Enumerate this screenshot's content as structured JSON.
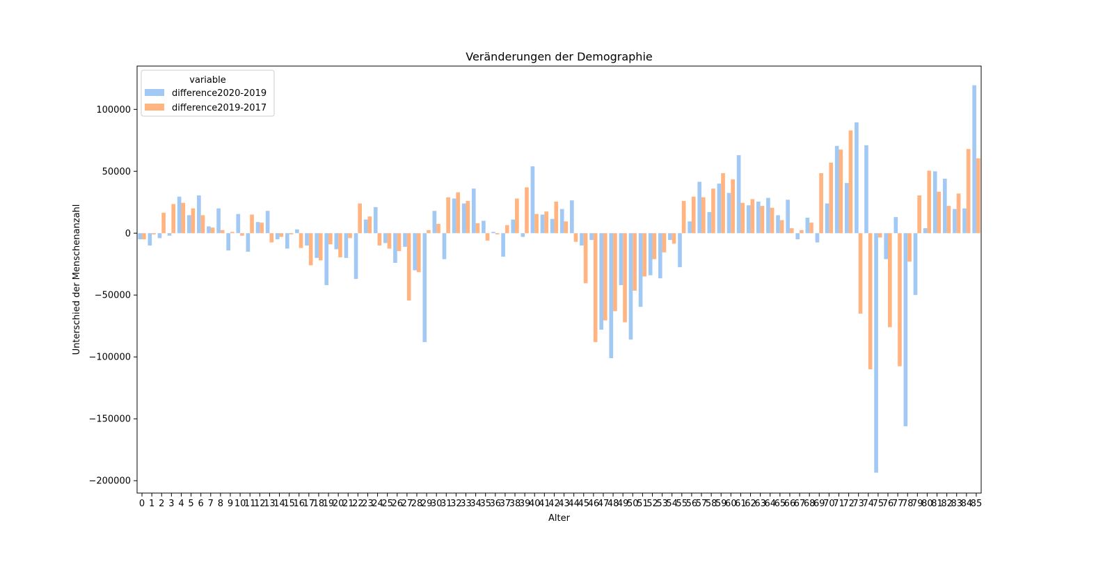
{
  "chart_data": {
    "type": "bar",
    "title": "Veränderungen der Demographie",
    "xlabel": "Alter",
    "ylabel": "Unterschied der Menschenanzahl",
    "ylim": [
      -210000,
      135000
    ],
    "yticks": [
      100000,
      50000,
      0,
      -50000,
      -100000,
      -150000,
      -200000
    ],
    "ytick_labels": [
      "100000",
      "50000",
      "0",
      "−50000",
      "−100000",
      "−150000",
      "−200000"
    ],
    "legend": {
      "title": "variable",
      "placement": "top-left"
    },
    "colors": [
      "#a1c9f4",
      "#ffb482"
    ],
    "categories": [
      "0",
      "1",
      "2",
      "3",
      "4",
      "5",
      "6",
      "7",
      "8",
      "9",
      "10",
      "11",
      "12",
      "13",
      "14",
      "15",
      "16",
      "17",
      "18",
      "19",
      "20",
      "21",
      "22",
      "23",
      "24",
      "25",
      "26",
      "27",
      "28",
      "29",
      "30",
      "31",
      "32",
      "33",
      "34",
      "35",
      "36",
      "37",
      "38",
      "39",
      "40",
      "41",
      "42",
      "43",
      "44",
      "45",
      "46",
      "47",
      "48",
      "49",
      "50",
      "51",
      "52",
      "53",
      "54",
      "55",
      "56",
      "57",
      "58",
      "59",
      "60",
      "61",
      "62",
      "63",
      "64",
      "65",
      "66",
      "67",
      "68",
      "69",
      "70",
      "71",
      "72",
      "73",
      "74",
      "75",
      "76",
      "77",
      "78",
      "79",
      "80",
      "81",
      "82",
      "83",
      "84",
      "85"
    ],
    "series": [
      {
        "name": "difference2020-2019",
        "values": [
          -5000,
          -10000,
          -4000,
          -2000,
          29500,
          14500,
          30500,
          5500,
          20000,
          -14000,
          15500,
          -15000,
          9000,
          18000,
          -5000,
          -12500,
          3000,
          -10000,
          -20000,
          -42000,
          -13000,
          -20000,
          -37000,
          11000,
          21000,
          -8000,
          -24000,
          -11000,
          -30000,
          -88000,
          18000,
          -21000,
          28000,
          24000,
          36000,
          10000,
          1000,
          -19000,
          11000,
          -3000,
          54000,
          15000,
          11500,
          19500,
          26500,
          -10000,
          -5500,
          -78000,
          -101000,
          -42000,
          -86000,
          -59500,
          -34000,
          -36500,
          -5500,
          -27500,
          9500,
          41500,
          17000,
          40000,
          32500,
          63000,
          22500,
          25500,
          28500,
          14500,
          27000,
          -5000,
          12500,
          -7500,
          24000,
          70500,
          40500,
          89500,
          71000,
          -193500,
          -21000,
          13000,
          -156000,
          -50000,
          4000,
          50000,
          44000,
          19500,
          20000,
          119500
        ]
      },
      {
        "name": "difference2019-2017",
        "values": [
          -5000,
          -1000,
          16500,
          23500,
          24500,
          20000,
          14500,
          4500,
          2500,
          1000,
          -2000,
          15000,
          8500,
          -7500,
          -3000,
          -1000,
          -12000,
          -26000,
          -22000,
          -9000,
          -19500,
          -4000,
          24000,
          13500,
          -10000,
          -12500,
          -14500,
          -54500,
          -31500,
          2500,
          7500,
          29000,
          33000,
          26000,
          8000,
          -6000,
          -1000,
          6500,
          28000,
          37000,
          15500,
          17500,
          25500,
          9500,
          -7000,
          -40500,
          -88000,
          -70500,
          -63000,
          -72000,
          -46500,
          -35000,
          -21000,
          -15500,
          -8500,
          26000,
          29500,
          29000,
          36000,
          48500,
          43500,
          24500,
          27500,
          22000,
          20500,
          10500,
          4000,
          2500,
          8500,
          48500,
          57000,
          67500,
          83000,
          -65000,
          -110000,
          -3500,
          -76000,
          -107500,
          -23000,
          30500,
          50500,
          33500,
          22000,
          32000,
          68000,
          60500
        ]
      }
    ]
  }
}
